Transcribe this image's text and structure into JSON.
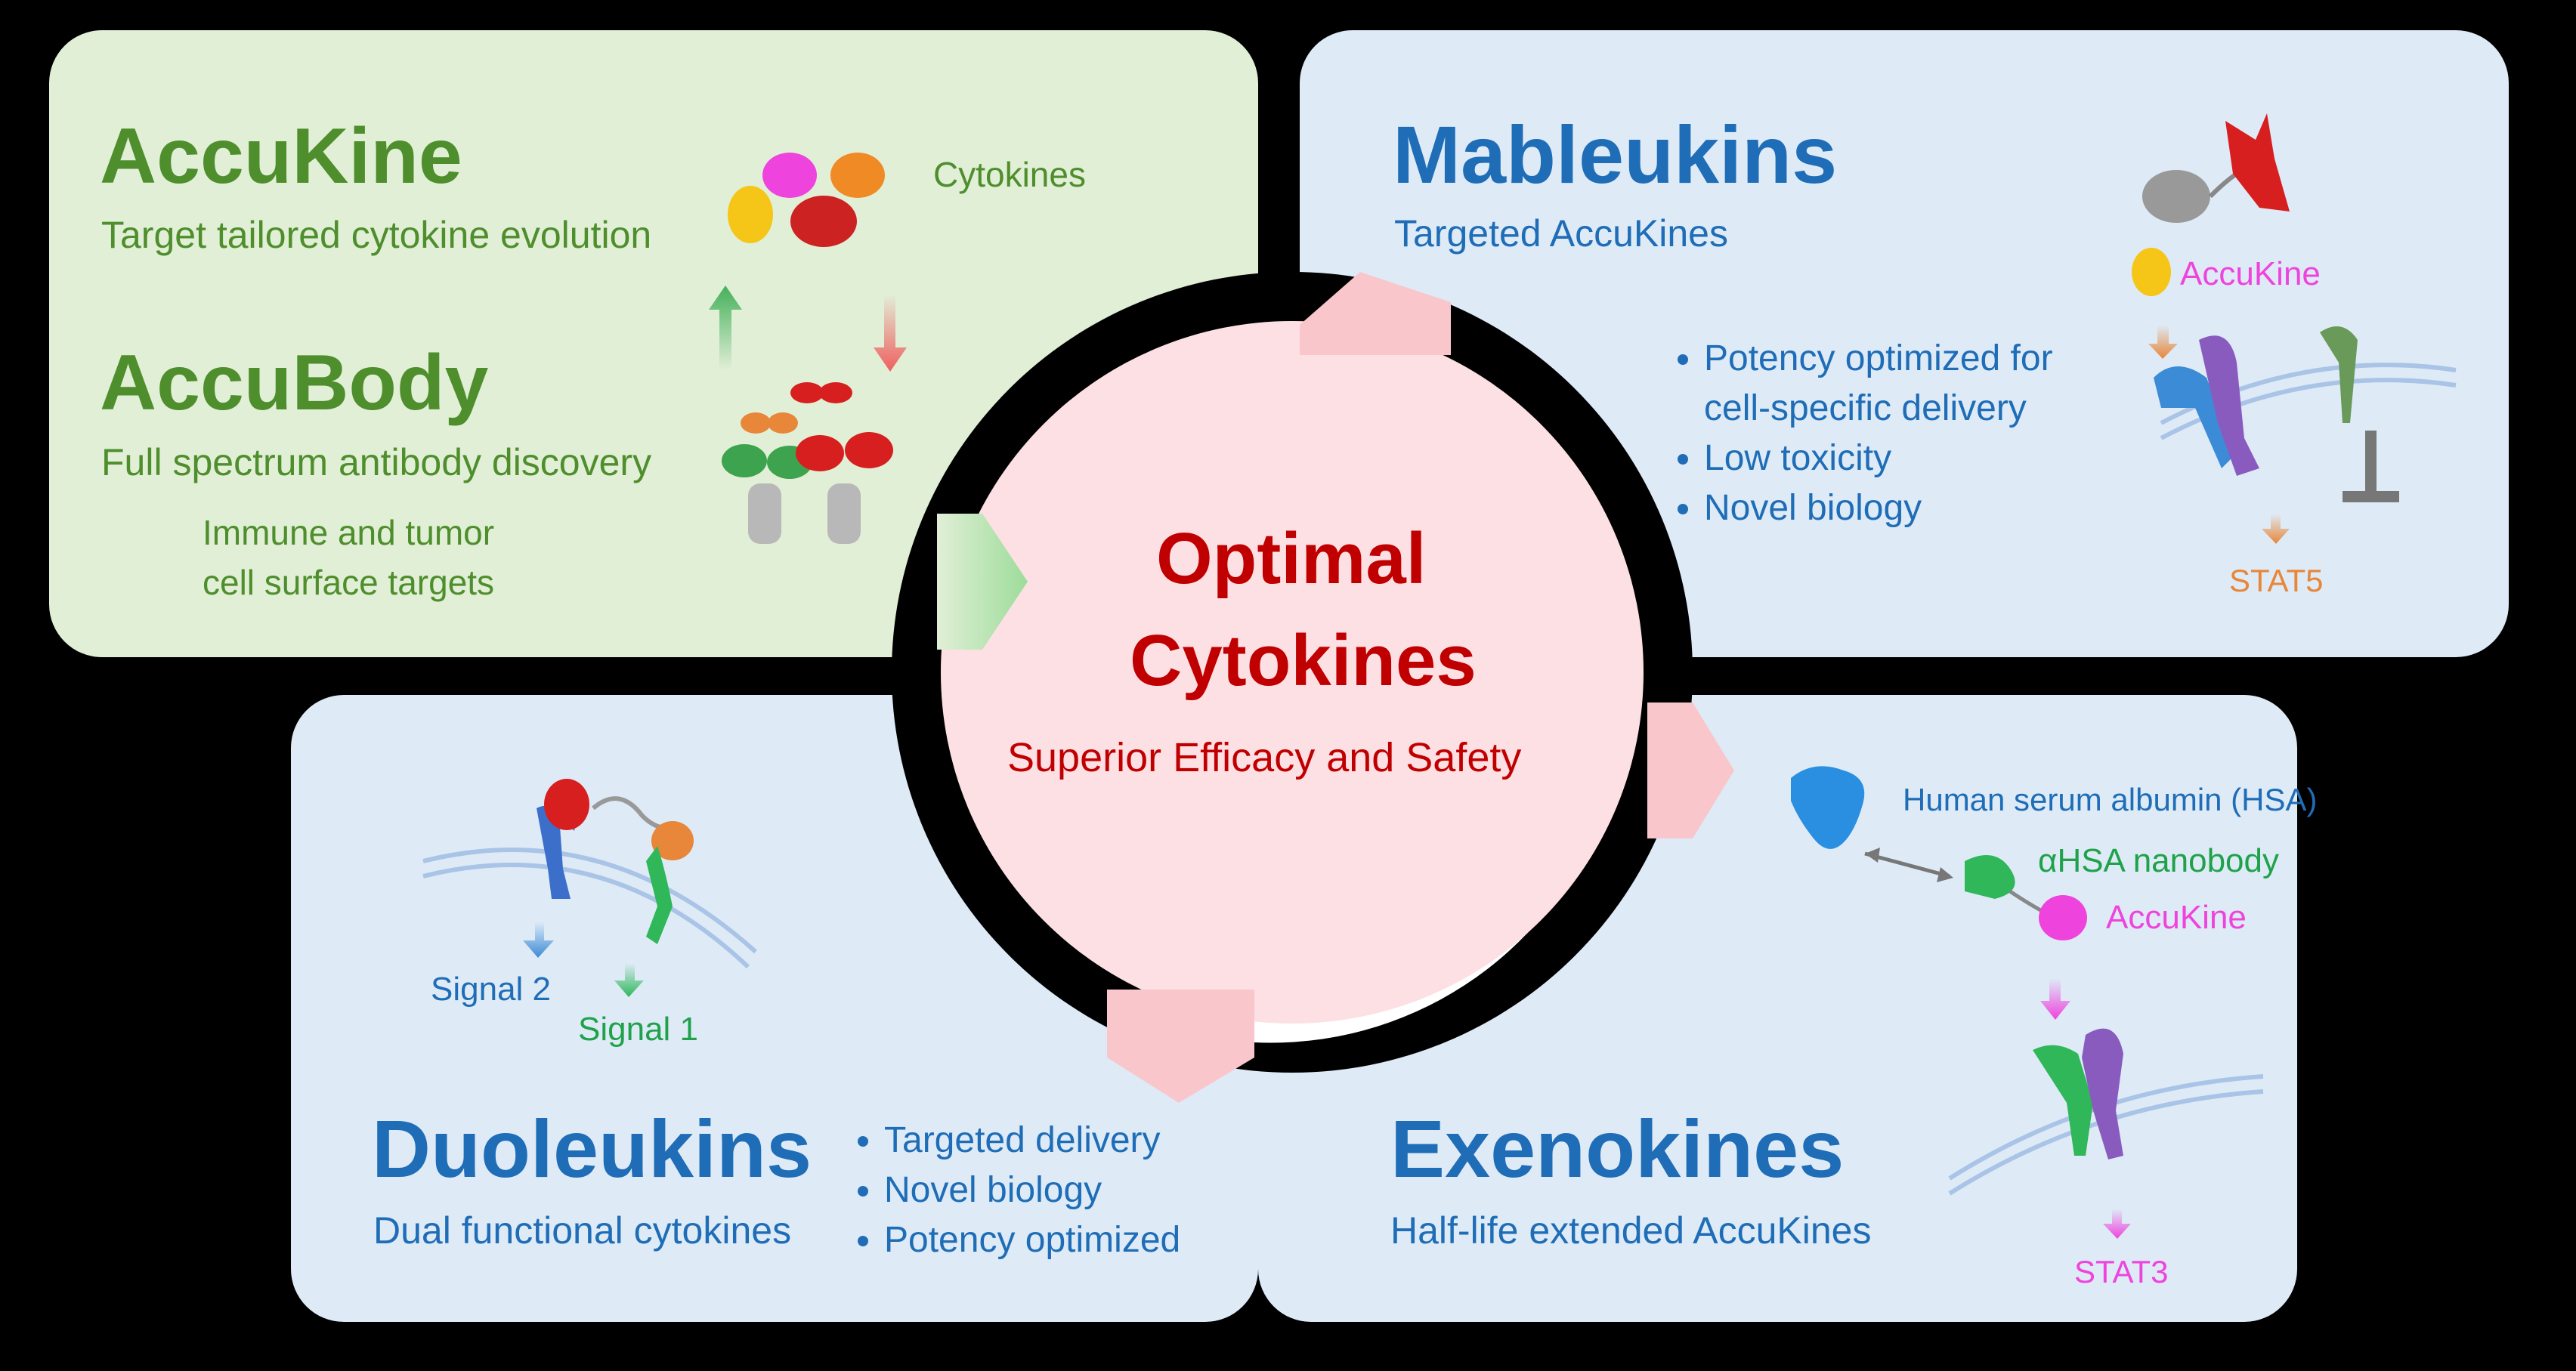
{
  "accukine": {
    "title": "AccuKine",
    "subtitle": "Target tailored cytokine evolution",
    "cytokines_label": "Cytokines"
  },
  "accubody": {
    "title": "AccuBody",
    "subtitle": "Full spectrum antibody discovery",
    "targets_line1": "Immune and tumor",
    "targets_line2": "cell surface targets"
  },
  "mableukins": {
    "title": "Mableukins",
    "subtitle": "Targeted AccuKines",
    "bullets": [
      "Potency optimized for",
      "cell-specific delivery",
      "Low toxicity",
      "Novel biology"
    ],
    "accukine_label": "AccuKine",
    "stat_label": "STAT5"
  },
  "center": {
    "title_line1": "Optimal",
    "title_line2": "Cytokines",
    "subtitle": "Superior Efficacy and Safety"
  },
  "duoleukins": {
    "title": "Duoleukins",
    "subtitle": "Dual functional cytokines",
    "bullets": [
      "Targeted delivery",
      "Novel biology",
      "Potency optimized"
    ],
    "signal2": "Signal 2",
    "signal1": "Signal 1"
  },
  "exenokines": {
    "title": "Exenokines",
    "subtitle": "Half-life extended AccuKines",
    "hsa_label": "Human serum albumin (HSA)",
    "nanobody_label": "αHSA nanobody",
    "accukine_label": "AccuKine",
    "stat_label": "STAT3"
  },
  "colors": {
    "green_text": "#4f8e2c",
    "blue_text": "#1f6db7",
    "center_red": "#c00000",
    "green_panel": "#e1efd7",
    "blue_panel": "#deebf7",
    "center_circle": "#fde0e4",
    "magenta": "#ee44dd",
    "orange": "#e8863a",
    "green_label": "#1fa24a"
  }
}
